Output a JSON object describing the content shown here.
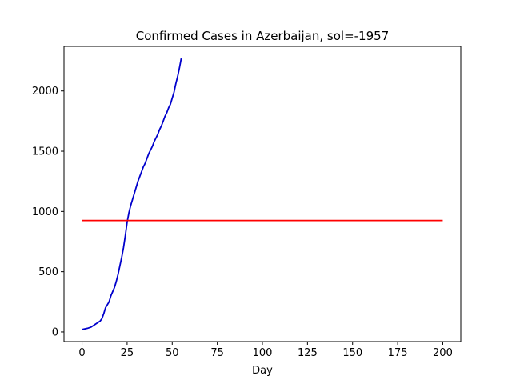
{
  "chart_data": {
    "type": "line",
    "title": "Confirmed Cases in Azerbaijan, sol=-1957",
    "xlabel": "Day",
    "ylabel": "",
    "xlim": [
      -10,
      210
    ],
    "ylim": [
      -80,
      2370
    ],
    "xticks": [
      0,
      25,
      50,
      75,
      100,
      125,
      150,
      175,
      200
    ],
    "yticks": [
      0,
      500,
      1000,
      1500,
      2000
    ],
    "grid": false,
    "series": [
      {
        "color": "#0000cc",
        "x": [
          0,
          3,
          5,
          7,
          10,
          11,
          12,
          13,
          15,
          16,
          18,
          19,
          20,
          21,
          22,
          23,
          24,
          25,
          26,
          27,
          28,
          29,
          30,
          31,
          32,
          33,
          34,
          35,
          36,
          37,
          38,
          39,
          40,
          41,
          42,
          43,
          44,
          45,
          46,
          47,
          48,
          49,
          50,
          51,
          52,
          53,
          54,
          55
        ],
        "y": [
          20,
          30,
          40,
          60,
          90,
          110,
          150,
          200,
          250,
          300,
          370,
          420,
          480,
          550,
          620,
          700,
          800,
          910,
          990,
          1050,
          1100,
          1150,
          1200,
          1250,
          1290,
          1330,
          1370,
          1400,
          1440,
          1480,
          1510,
          1540,
          1580,
          1610,
          1640,
          1680,
          1710,
          1750,
          1790,
          1820,
          1860,
          1890,
          1940,
          1990,
          2060,
          2120,
          2190,
          2270
        ]
      },
      {
        "color": "#ff0000",
        "x": [
          0,
          200
        ],
        "y": [
          925,
          925
        ]
      }
    ]
  }
}
